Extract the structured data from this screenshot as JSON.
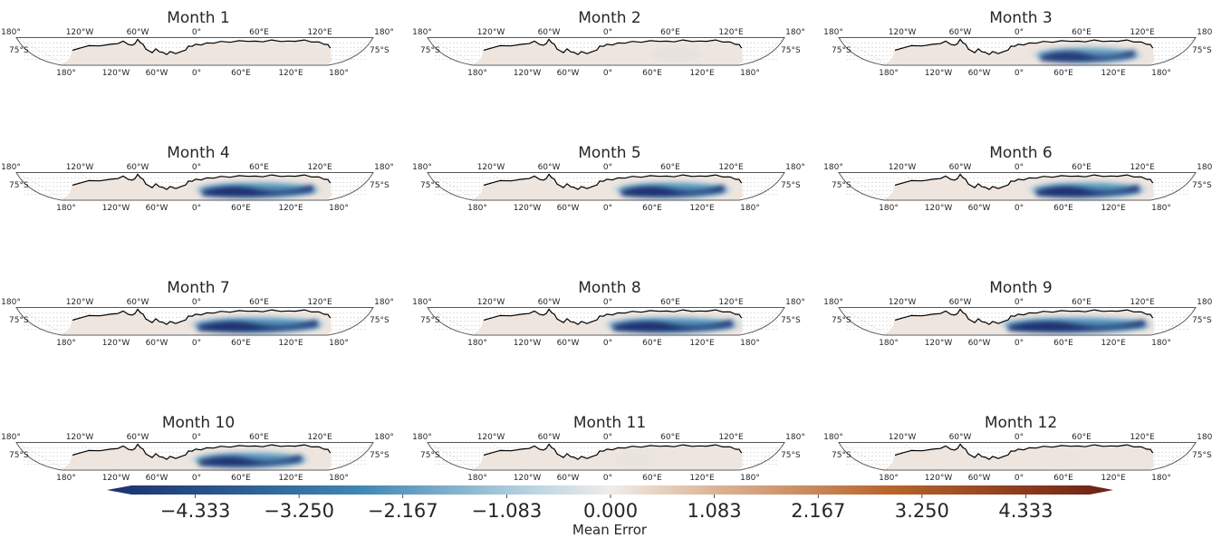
{
  "chart_data": {
    "type": "heatmap",
    "projection": "south polar stereographic band (75°S)",
    "panels": [
      {
        "title": "Month 1",
        "negative_anomaly": {
          "intensity": 0.0,
          "lon_center": 60,
          "lon_half_width": 0
        }
      },
      {
        "title": "Month 2",
        "negative_anomaly": {
          "intensity": 0.2,
          "lon_center": 95,
          "lon_half_width": 20
        }
      },
      {
        "title": "Month 3",
        "negative_anomaly": {
          "intensity": 0.9,
          "lon_center": 95,
          "lon_half_width": 55
        }
      },
      {
        "title": "Month 4",
        "negative_anomaly": {
          "intensity": 1.0,
          "lon_center": 85,
          "lon_half_width": 65
        }
      },
      {
        "title": "Month 5",
        "negative_anomaly": {
          "intensity": 1.0,
          "lon_center": 90,
          "lon_half_width": 60
        }
      },
      {
        "title": "Month 6",
        "negative_anomaly": {
          "intensity": 1.0,
          "lon_center": 95,
          "lon_half_width": 60
        }
      },
      {
        "title": "Month 7",
        "negative_anomaly": {
          "intensity": 1.0,
          "lon_center": 85,
          "lon_half_width": 70
        }
      },
      {
        "title": "Month 8",
        "negative_anomaly": {
          "intensity": 1.0,
          "lon_center": 90,
          "lon_half_width": 70
        }
      },
      {
        "title": "Month 9",
        "negative_anomaly": {
          "intensity": 1.0,
          "lon_center": 80,
          "lon_half_width": 80
        }
      },
      {
        "title": "Month 10",
        "negative_anomaly": {
          "intensity": 0.95,
          "lon_center": 75,
          "lon_half_width": 60
        }
      },
      {
        "title": "Month 11",
        "negative_anomaly": {
          "intensity": 0.12,
          "lon_center": 40,
          "lon_half_width": 15
        }
      },
      {
        "title": "Month 12",
        "negative_anomaly": {
          "intensity": 0.05,
          "lon_center": 60,
          "lon_half_width": 15
        }
      }
    ],
    "map_ticks": {
      "top": [
        "180°",
        "120°W",
        "60°W",
        "0°",
        "60°E",
        "120°E",
        "180°"
      ],
      "bottom": [
        "180°",
        "120°W",
        "60°W",
        "0°",
        "60°E",
        "120°E",
        "180°"
      ],
      "lat": "75°S"
    },
    "colorbar": {
      "label": "Mean Error",
      "range": [
        -5.0,
        5.0
      ],
      "ticks": [
        -4.333,
        -3.25,
        -2.167,
        -1.083,
        0.0,
        1.083,
        2.167,
        3.25,
        4.333
      ],
      "tick_labels": [
        "−4.333",
        "−3.250",
        "−2.167",
        "−1.083",
        "0.000",
        "1.083",
        "2.167",
        "3.250",
        "4.333"
      ],
      "colors": {
        "min": "#1b2f6e",
        "neg_mid": "#3f86b3",
        "neg_light": "#b8d3e0",
        "zero": "#f0ede9",
        "pos_light": "#dcb69a",
        "pos_mid": "#b8642b",
        "max": "#6b2016"
      },
      "extend": "both"
    },
    "colors": {
      "land": "#eee5df",
      "coast": "#000000",
      "frame": "#555555",
      "grid": "#b0b0b0"
    }
  }
}
